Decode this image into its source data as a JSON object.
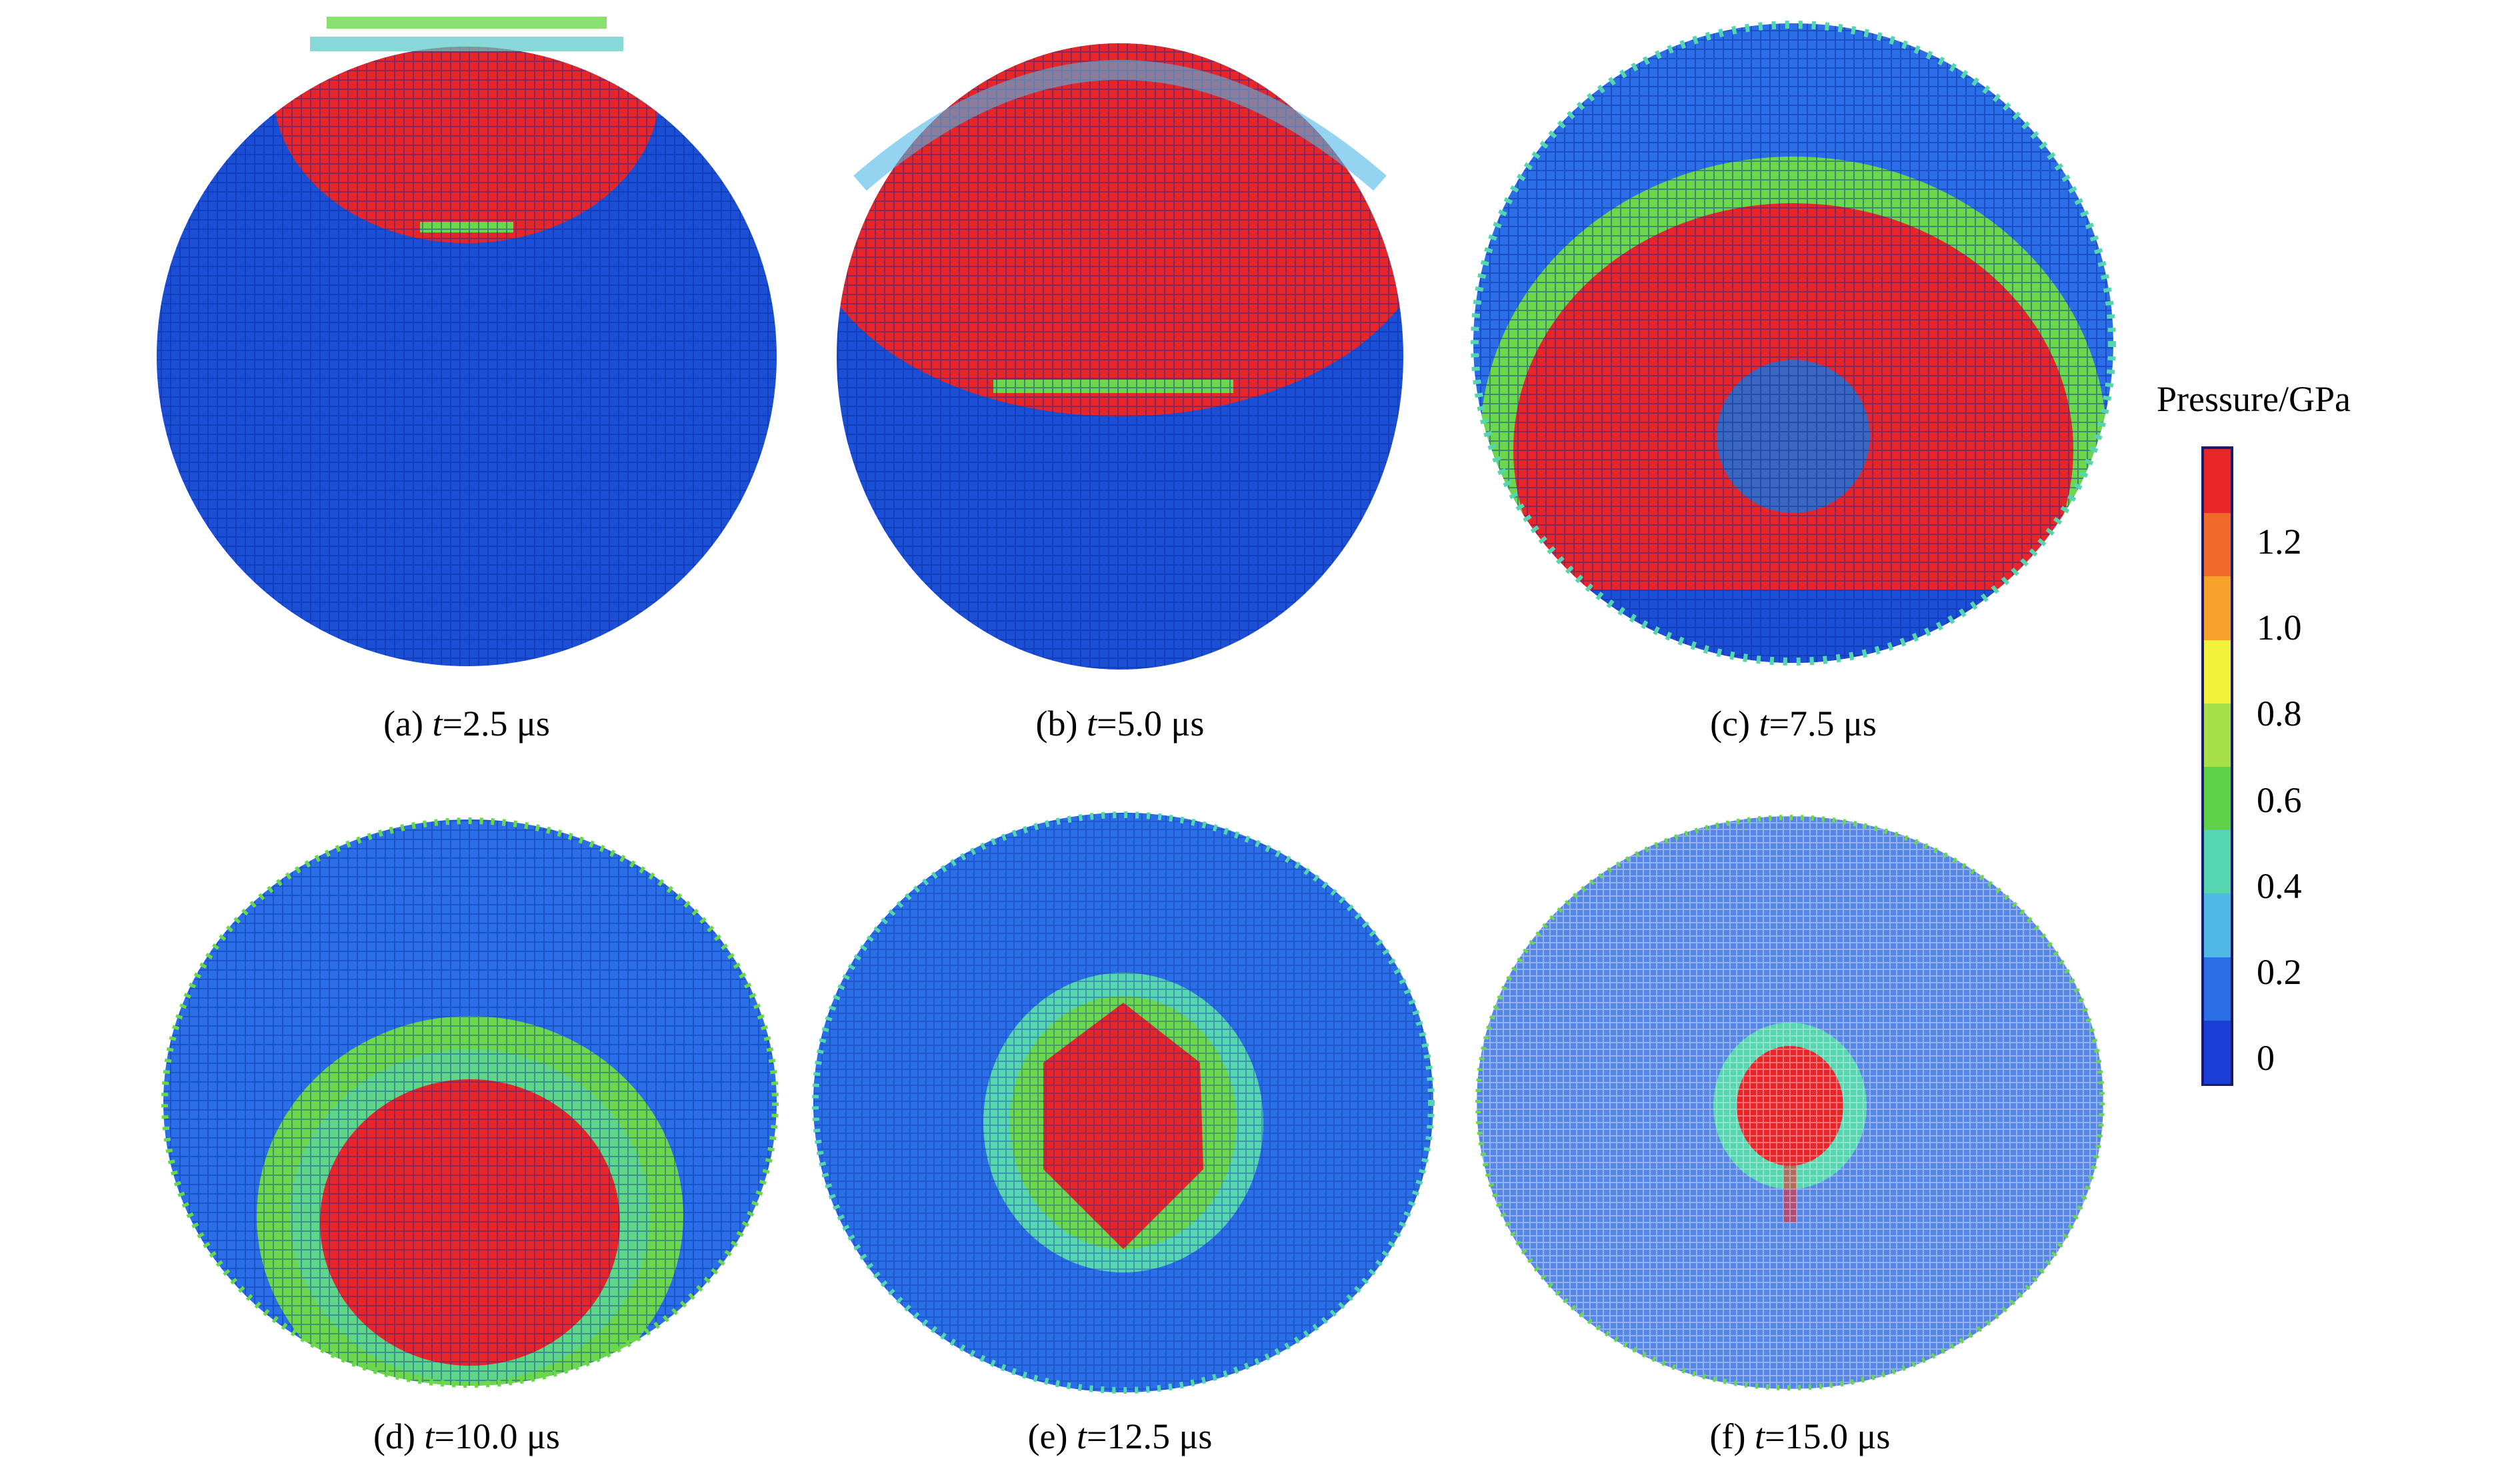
{
  "figure": {
    "panels": [
      {
        "label": "(a) ",
        "t_symbol": "t",
        "value": "=2.5 μs"
      },
      {
        "label": "(b) ",
        "t_symbol": "t",
        "value": "=5.0 μs"
      },
      {
        "label": "(c) ",
        "t_symbol": "t",
        "value": "=7.5 μs"
      },
      {
        "label": "(d) ",
        "t_symbol": "t",
        "value": "=10.0 μs"
      },
      {
        "label": "(e) ",
        "t_symbol": "t",
        "value": "=12.5 μs"
      },
      {
        "label": "(f) ",
        "t_symbol": "t",
        "value": "=15.0 μs"
      }
    ],
    "legend": {
      "title": "Pressure/GPa",
      "ticks": [
        "1.2",
        "1.0",
        "0.8",
        "0.6",
        "0.4",
        "0.2",
        "0"
      ],
      "colors": [
        "#1b3fd6",
        "#2a6ee8",
        "#4fb8e6",
        "#55d6b0",
        "#5fd24a",
        "#a8e04a",
        "#f2f23a",
        "#f5a12a",
        "#f26a2a",
        "#e8262a"
      ]
    }
  }
}
